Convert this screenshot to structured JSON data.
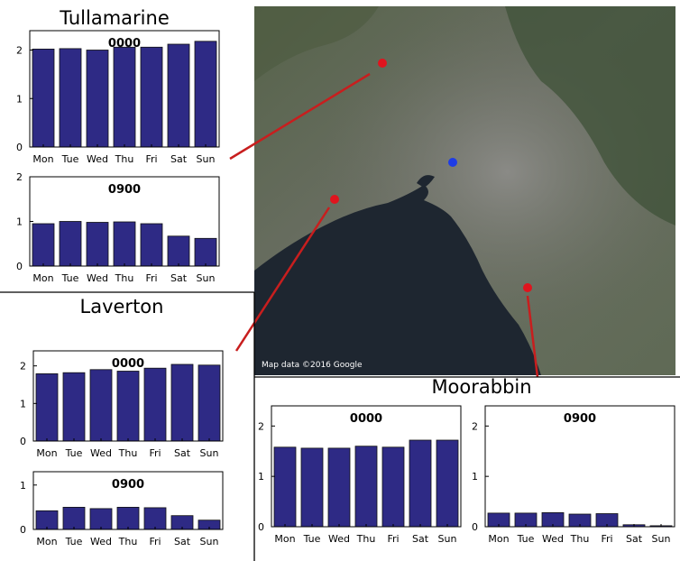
{
  "map": {
    "attribution": "Map data ©2016 Google",
    "colors": {
      "station_marker": "#e0141e",
      "city_marker": "#1e3ce6",
      "connector": "#c81e1e"
    }
  },
  "colors": {
    "bar_fill": "#2e2a85",
    "bar_edge": "#111111"
  },
  "stations": [
    {
      "name": "Tullamarine"
    },
    {
      "name": "Laverton"
    },
    {
      "name": "Moorabbin"
    }
  ],
  "chart_data": [
    {
      "type": "bar",
      "station": "Tullamarine",
      "title": "0000",
      "categories": [
        "Mon",
        "Tue",
        "Wed",
        "Thu",
        "Fri",
        "Sat",
        "Sun"
      ],
      "values": [
        2.02,
        2.03,
        2.0,
        2.06,
        2.06,
        2.12,
        2.18
      ],
      "ylim": [
        0,
        2.4
      ],
      "yticks": [
        0,
        1,
        2
      ],
      "xlabel": "",
      "ylabel": ""
    },
    {
      "type": "bar",
      "station": "Tullamarine",
      "title": "0900",
      "categories": [
        "Mon",
        "Tue",
        "Wed",
        "Thu",
        "Fri",
        "Sat",
        "Sun"
      ],
      "values": [
        0.95,
        1.0,
        0.98,
        0.99,
        0.95,
        0.67,
        0.62
      ],
      "ylim": [
        0,
        2
      ],
      "yticks": [
        0,
        1,
        2
      ],
      "xlabel": "",
      "ylabel": ""
    },
    {
      "type": "bar",
      "station": "Laverton",
      "title": "0000",
      "categories": [
        "Mon",
        "Tue",
        "Wed",
        "Thu",
        "Fri",
        "Sat",
        "Sun"
      ],
      "values": [
        1.79,
        1.82,
        1.9,
        1.86,
        1.94,
        2.04,
        2.02
      ],
      "ylim": [
        0,
        2.4
      ],
      "yticks": [
        0,
        1,
        2
      ],
      "xlabel": "",
      "ylabel": ""
    },
    {
      "type": "bar",
      "station": "Laverton",
      "title": "0900",
      "categories": [
        "Mon",
        "Tue",
        "Wed",
        "Thu",
        "Fri",
        "Sat",
        "Sun"
      ],
      "values": [
        0.42,
        0.5,
        0.47,
        0.5,
        0.49,
        0.31,
        0.21
      ],
      "ylim": [
        0,
        1.3
      ],
      "yticks": [
        0,
        1
      ],
      "xlabel": "",
      "ylabel": ""
    },
    {
      "type": "bar",
      "station": "Moorabbin",
      "title": "0000",
      "categories": [
        "Mon",
        "Tue",
        "Wed",
        "Thu",
        "Fri",
        "Sat",
        "Sun"
      ],
      "values": [
        1.58,
        1.56,
        1.56,
        1.6,
        1.58,
        1.72,
        1.72
      ],
      "ylim": [
        0,
        2.4
      ],
      "yticks": [
        0,
        1,
        2
      ],
      "xlabel": "",
      "ylabel": ""
    },
    {
      "type": "bar",
      "station": "Moorabbin",
      "title": "0900",
      "categories": [
        "Mon",
        "Tue",
        "Wed",
        "Thu",
        "Fri",
        "Sat",
        "Sun"
      ],
      "values": [
        0.27,
        0.27,
        0.28,
        0.25,
        0.26,
        0.04,
        0.02
      ],
      "ylim": [
        0,
        2.4
      ],
      "yticks": [
        0,
        1,
        2
      ],
      "xlabel": "",
      "ylabel": ""
    }
  ]
}
